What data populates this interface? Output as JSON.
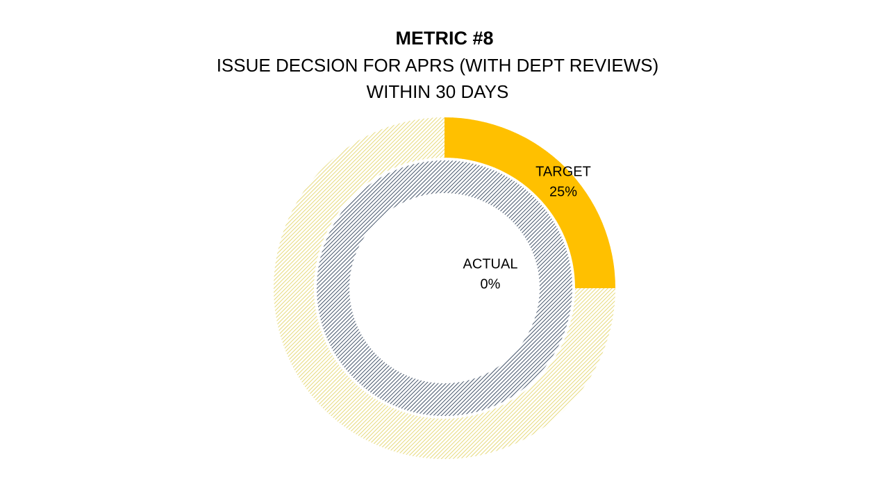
{
  "chart_data": {
    "type": "doughnut",
    "title": "METRIC #8",
    "subtitle": [
      "ISSUE DECSION FOR APRS (WITH DEPT REVIEWS)",
      "WITHIN 30 DAYS"
    ],
    "series": [
      {
        "name": "TARGET",
        "color": "#ffc000",
        "rest_color": "#e6d97a",
        "values": [
          25
        ],
        "value_labels": [
          "25%"
        ]
      },
      {
        "name": "ACTUAL",
        "color": "#44546a",
        "rest_color": "#44546a",
        "values": [
          0
        ],
        "value_labels": [
          "0%"
        ]
      }
    ]
  }
}
